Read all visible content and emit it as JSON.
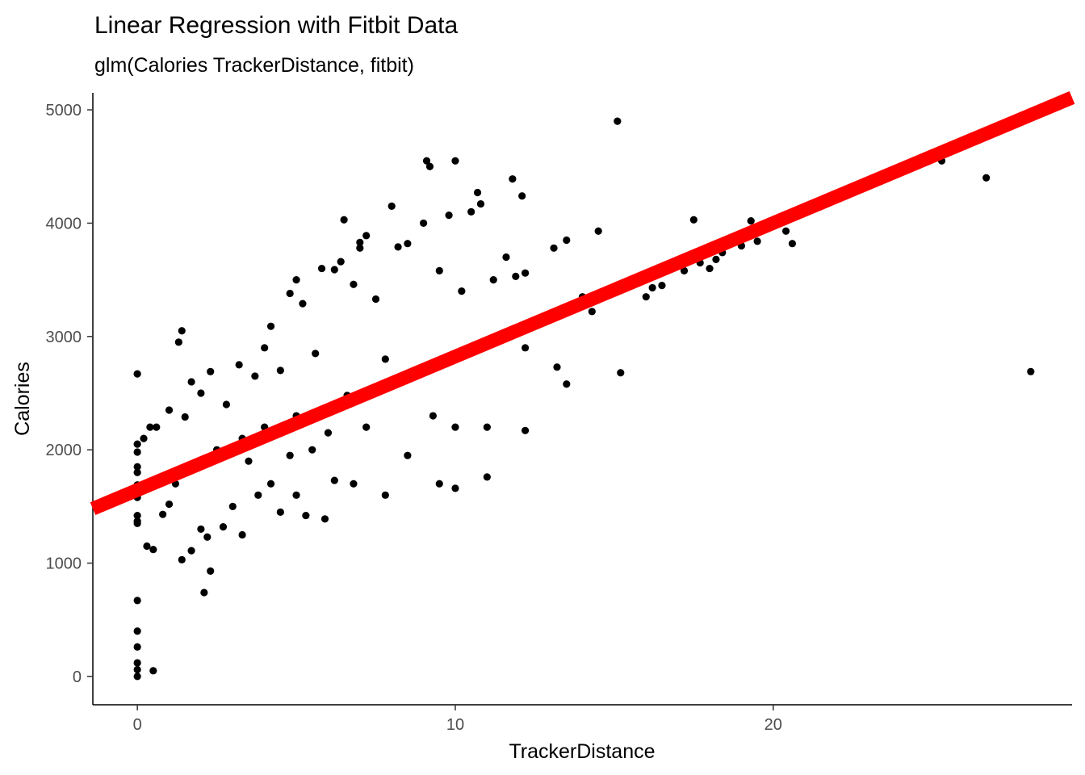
{
  "chart_data": {
    "type": "scatter",
    "title": "Linear Regression with Fitbit Data",
    "subtitle": "glm(Calories TrackerDistance, fitbit)",
    "xlabel": "TrackerDistance",
    "ylabel": "Calories",
    "xlim": [
      -1.4,
      29.4
    ],
    "ylim": [
      -250,
      5150
    ],
    "x_ticks": [
      0,
      10,
      20
    ],
    "x_tick_labels": [
      "0",
      "10",
      "20"
    ],
    "y_ticks": [
      0,
      1000,
      2000,
      3000,
      4000,
      5000
    ],
    "y_tick_labels": [
      "0",
      "1000",
      "2000",
      "3000",
      "4000",
      "5000"
    ],
    "grid": false,
    "point_color": "#000000",
    "regression_line": {
      "color": "#ff0000",
      "intercept": 1645,
      "slope": 117.8,
      "x_range": [
        -1.4,
        29.4
      ]
    },
    "points": [
      [
        0,
        2670
      ],
      [
        0,
        670
      ],
      [
        0,
        400
      ],
      [
        0,
        260
      ],
      [
        0,
        120
      ],
      [
        0,
        60
      ],
      [
        0,
        0
      ],
      [
        0.5,
        50
      ],
      [
        0,
        2050
      ],
      [
        0,
        1980
      ],
      [
        0,
        1850
      ],
      [
        0,
        1800
      ],
      [
        0,
        1690
      ],
      [
        0,
        1580
      ],
      [
        0,
        1420
      ],
      [
        0,
        1370
      ],
      [
        0,
        1350
      ],
      [
        0.2,
        2100
      ],
      [
        0.3,
        1150
      ],
      [
        0.5,
        1120
      ],
      [
        0.4,
        2200
      ],
      [
        0.6,
        2200
      ],
      [
        0.8,
        1430
      ],
      [
        1.0,
        1520
      ],
      [
        1.0,
        2350
      ],
      [
        1.2,
        1700
      ],
      [
        1.3,
        2950
      ],
      [
        1.4,
        3050
      ],
      [
        1.4,
        1030
      ],
      [
        1.5,
        2290
      ],
      [
        1.7,
        2600
      ],
      [
        1.7,
        1110
      ],
      [
        2.0,
        1300
      ],
      [
        2.0,
        2500
      ],
      [
        2.1,
        740
      ],
      [
        2.2,
        1230
      ],
      [
        2.3,
        930
      ],
      [
        2.3,
        2690
      ],
      [
        2.5,
        2000
      ],
      [
        2.7,
        1320
      ],
      [
        2.8,
        2400
      ],
      [
        3.0,
        1500
      ],
      [
        3.2,
        2750
      ],
      [
        3.3,
        2100
      ],
      [
        3.3,
        1250
      ],
      [
        3.5,
        1900
      ],
      [
        3.7,
        2650
      ],
      [
        3.8,
        1600
      ],
      [
        4.0,
        2200
      ],
      [
        4.0,
        2900
      ],
      [
        4.2,
        1700
      ],
      [
        4.2,
        3090
      ],
      [
        4.5,
        1450
      ],
      [
        4.5,
        2700
      ],
      [
        4.8,
        1950
      ],
      [
        4.8,
        3380
      ],
      [
        5.0,
        3500
      ],
      [
        5.0,
        1600
      ],
      [
        5.0,
        2300
      ],
      [
        5.2,
        3290
      ],
      [
        5.3,
        1420
      ],
      [
        5.5,
        2000
      ],
      [
        5.6,
        2850
      ],
      [
        5.8,
        3600
      ],
      [
        5.9,
        1390
      ],
      [
        6.0,
        2150
      ],
      [
        6.2,
        3590
      ],
      [
        6.2,
        1730
      ],
      [
        6.4,
        3660
      ],
      [
        6.5,
        4030
      ],
      [
        6.6,
        2480
      ],
      [
        6.8,
        3460
      ],
      [
        6.8,
        1700
      ],
      [
        7.0,
        3830
      ],
      [
        7.0,
        3780
      ],
      [
        7.2,
        2200
      ],
      [
        7.2,
        3890
      ],
      [
        7.5,
        3330
      ],
      [
        7.8,
        1600
      ],
      [
        7.8,
        2800
      ],
      [
        8.0,
        4150
      ],
      [
        8.2,
        3790
      ],
      [
        8.5,
        1950
      ],
      [
        8.5,
        3820
      ],
      [
        8.7,
        2700
      ],
      [
        9.0,
        4000
      ],
      [
        9.1,
        4550
      ],
      [
        9.2,
        4500
      ],
      [
        9.3,
        2300
      ],
      [
        9.5,
        3580
      ],
      [
        9.5,
        1700
      ],
      [
        9.8,
        4070
      ],
      [
        10.0,
        4550
      ],
      [
        10.0,
        1660
      ],
      [
        10.0,
        2200
      ],
      [
        10.2,
        3400
      ],
      [
        10.5,
        4100
      ],
      [
        10.7,
        4270
      ],
      [
        10.8,
        4170
      ],
      [
        11.0,
        2200
      ],
      [
        11.0,
        1760
      ],
      [
        11.2,
        3500
      ],
      [
        11.5,
        3000
      ],
      [
        11.6,
        3700
      ],
      [
        11.8,
        4390
      ],
      [
        11.9,
        3530
      ],
      [
        12.1,
        4240
      ],
      [
        12.2,
        3560
      ],
      [
        12.2,
        2170
      ],
      [
        12.2,
        2900
      ],
      [
        13.1,
        3780
      ],
      [
        13.2,
        2730
      ],
      [
        13.5,
        3850
      ],
      [
        13.5,
        2580
      ],
      [
        14.0,
        3350
      ],
      [
        14.3,
        3220
      ],
      [
        14.5,
        3930
      ],
      [
        15.1,
        4900
      ],
      [
        15.2,
        2680
      ],
      [
        16.0,
        3350
      ],
      [
        16.2,
        3430
      ],
      [
        16.5,
        3450
      ],
      [
        17.2,
        3580
      ],
      [
        17.5,
        4030
      ],
      [
        17.7,
        3650
      ],
      [
        18.0,
        3600
      ],
      [
        18.2,
        3680
      ],
      [
        18.4,
        3740
      ],
      [
        19.0,
        3800
      ],
      [
        19.3,
        4020
      ],
      [
        19.5,
        3840
      ],
      [
        20.4,
        3930
      ],
      [
        20.6,
        3820
      ],
      [
        25.3,
        4550
      ],
      [
        26.7,
        4400
      ],
      [
        28.1,
        2690
      ]
    ]
  }
}
